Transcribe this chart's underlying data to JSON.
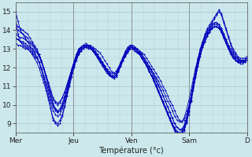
{
  "background_color": "#cce8ec",
  "grid_color": "#aaccd4",
  "line_color": "#0000bb",
  "xlabel": "Température (°c)",
  "xlim": [
    0,
    100
  ],
  "ylim": [
    8.5,
    15.5
  ],
  "yticks": [
    9,
    10,
    11,
    12,
    13,
    14,
    15
  ],
  "xtick_positions": [
    0,
    25,
    50,
    75,
    100
  ],
  "xtick_labels": [
    "Mer",
    "Jeu",
    "Ven",
    "Sam",
    "D"
  ],
  "series": [
    [
      14.7,
      13.8,
      13.4,
      13.2,
      13.1,
      13.0,
      12.9,
      12.7,
      12.5,
      12.3,
      12.0,
      11.6,
      11.2,
      10.8,
      10.3,
      9.8,
      9.3,
      9.1,
      9.0,
      9.2,
      9.5,
      10.0,
      10.5,
      11.0,
      11.5,
      12.0,
      12.4,
      12.7,
      12.9,
      13.1,
      13.2,
      13.2,
      13.2,
      13.1,
      13.0,
      12.9,
      12.8,
      12.6,
      12.4,
      12.2,
      12.0,
      11.8,
      11.7,
      11.8,
      12.0,
      12.3,
      12.6,
      12.9,
      13.1,
      13.2,
      13.2,
      13.1,
      13.0,
      12.9,
      12.8,
      12.7,
      12.5,
      12.3,
      12.1,
      11.9,
      11.7,
      11.5,
      11.3,
      11.0,
      10.8,
      10.5,
      10.2,
      10.0,
      9.7,
      9.4,
      9.2,
      9.1,
      9.2,
      9.5,
      9.9,
      10.5,
      11.2,
      11.9,
      12.5,
      13.0,
      13.4,
      13.7,
      14.0,
      14.2,
      14.4,
      14.6,
      14.8,
      15.0,
      14.8,
      14.4,
      14.0,
      13.6,
      13.2,
      12.9,
      12.7,
      12.5,
      12.4,
      12.4,
      12.4,
      12.5
    ],
    [
      15.0,
      14.5,
      14.0,
      13.8,
      13.6,
      13.4,
      13.2,
      13.0,
      12.8,
      12.6,
      12.3,
      11.9,
      11.4,
      10.9,
      10.4,
      9.8,
      9.2,
      9.0,
      8.9,
      9.0,
      9.4,
      9.9,
      10.5,
      11.1,
      11.7,
      12.2,
      12.6,
      12.9,
      13.1,
      13.2,
      13.3,
      13.2,
      13.1,
      13.0,
      12.9,
      12.7,
      12.5,
      12.3,
      12.1,
      11.9,
      11.7,
      11.5,
      11.4,
      11.5,
      11.8,
      12.2,
      12.5,
      12.8,
      13.0,
      13.2,
      13.2,
      13.1,
      13.0,
      12.9,
      12.7,
      12.5,
      12.3,
      12.1,
      11.9,
      11.6,
      11.4,
      11.1,
      10.8,
      10.5,
      10.2,
      9.9,
      9.6,
      9.3,
      9.0,
      8.8,
      8.7,
      8.7,
      8.8,
      9.2,
      9.7,
      10.4,
      11.1,
      11.8,
      12.4,
      13.0,
      13.4,
      13.8,
      14.1,
      14.3,
      14.5,
      14.7,
      14.9,
      15.1,
      14.9,
      14.5,
      14.1,
      13.7,
      13.3,
      13.0,
      12.8,
      12.6,
      12.5,
      12.5,
      12.5,
      12.6
    ],
    [
      13.5,
      13.5,
      13.4,
      13.4,
      13.3,
      13.2,
      13.1,
      13.0,
      12.9,
      12.8,
      12.6,
      12.3,
      12.0,
      11.6,
      11.2,
      10.8,
      10.4,
      10.2,
      10.1,
      10.2,
      10.4,
      10.7,
      11.1,
      11.5,
      11.9,
      12.3,
      12.6,
      12.8,
      13.0,
      13.1,
      13.1,
      13.1,
      13.0,
      12.9,
      12.8,
      12.7,
      12.5,
      12.3,
      12.1,
      11.9,
      11.8,
      11.7,
      11.7,
      11.8,
      12.0,
      12.3,
      12.5,
      12.8,
      13.0,
      13.1,
      13.1,
      13.0,
      12.9,
      12.8,
      12.7,
      12.5,
      12.3,
      12.1,
      11.9,
      11.7,
      11.5,
      11.3,
      11.0,
      10.8,
      10.5,
      10.2,
      10.0,
      9.7,
      9.4,
      9.2,
      9.1,
      9.1,
      9.3,
      9.7,
      10.2,
      10.8,
      11.4,
      12.0,
      12.5,
      13.0,
      13.3,
      13.6,
      13.8,
      14.0,
      14.1,
      14.2,
      14.2,
      14.1,
      13.9,
      13.6,
      13.3,
      13.0,
      12.8,
      12.6,
      12.5,
      12.4,
      12.4,
      12.4,
      12.4,
      12.5
    ],
    [
      13.8,
      13.7,
      13.6,
      13.6,
      13.5,
      13.4,
      13.3,
      13.2,
      13.0,
      12.9,
      12.7,
      12.4,
      12.0,
      11.6,
      11.2,
      10.7,
      10.3,
      10.1,
      10.0,
      10.1,
      10.4,
      10.7,
      11.1,
      11.5,
      11.9,
      12.3,
      12.7,
      12.9,
      13.1,
      13.2,
      13.2,
      13.2,
      13.1,
      13.0,
      12.8,
      12.7,
      12.5,
      12.3,
      12.1,
      11.9,
      11.7,
      11.6,
      11.6,
      11.7,
      11.9,
      12.2,
      12.5,
      12.7,
      12.9,
      13.1,
      13.1,
      13.0,
      12.9,
      12.8,
      12.6,
      12.4,
      12.2,
      12.0,
      11.8,
      11.5,
      11.3,
      11.0,
      10.8,
      10.5,
      10.2,
      9.9,
      9.6,
      9.3,
      9.0,
      8.8,
      8.7,
      8.7,
      8.9,
      9.3,
      9.8,
      10.4,
      11.0,
      11.6,
      12.2,
      12.7,
      13.1,
      13.4,
      13.7,
      13.9,
      14.1,
      14.2,
      14.2,
      14.1,
      13.9,
      13.6,
      13.3,
      13.0,
      12.8,
      12.6,
      12.4,
      12.3,
      12.3,
      12.3,
      12.4,
      12.5
    ],
    [
      14.1,
      14.0,
      13.9,
      13.8,
      13.7,
      13.6,
      13.4,
      13.3,
      13.1,
      12.9,
      12.6,
      12.3,
      11.9,
      11.5,
      11.0,
      10.5,
      10.1,
      9.8,
      9.7,
      9.8,
      10.1,
      10.5,
      10.9,
      11.4,
      11.9,
      12.3,
      12.7,
      13.0,
      13.1,
      13.2,
      13.2,
      13.2,
      13.1,
      13.0,
      12.8,
      12.6,
      12.4,
      12.2,
      12.0,
      11.8,
      11.6,
      11.5,
      11.5,
      11.6,
      11.9,
      12.2,
      12.5,
      12.7,
      12.9,
      13.1,
      13.1,
      13.0,
      12.9,
      12.7,
      12.5,
      12.3,
      12.1,
      11.9,
      11.6,
      11.4,
      11.1,
      10.8,
      10.5,
      10.2,
      9.9,
      9.6,
      9.3,
      9.0,
      8.8,
      8.6,
      8.5,
      8.6,
      8.8,
      9.2,
      9.7,
      10.4,
      11.0,
      11.7,
      12.3,
      12.8,
      13.2,
      13.6,
      13.9,
      14.1,
      14.3,
      14.4,
      14.4,
      14.3,
      14.1,
      13.8,
      13.5,
      13.2,
      13.0,
      12.8,
      12.6,
      12.5,
      12.4,
      12.4,
      12.4,
      12.5
    ],
    [
      13.3,
      13.2,
      13.2,
      13.1,
      13.0,
      13.0,
      12.9,
      12.8,
      12.6,
      12.5,
      12.3,
      12.0,
      11.6,
      11.2,
      10.8,
      10.3,
      9.9,
      9.7,
      9.6,
      9.7,
      9.9,
      10.3,
      10.7,
      11.2,
      11.7,
      12.1,
      12.5,
      12.7,
      12.9,
      13.0,
      13.1,
      13.0,
      13.0,
      12.9,
      12.7,
      12.6,
      12.4,
      12.2,
      12.0,
      11.8,
      11.6,
      11.5,
      11.5,
      11.6,
      11.8,
      12.1,
      12.4,
      12.7,
      12.9,
      13.0,
      13.0,
      12.9,
      12.8,
      12.7,
      12.5,
      12.3,
      12.1,
      11.9,
      11.6,
      11.4,
      11.1,
      10.8,
      10.5,
      10.2,
      9.9,
      9.6,
      9.3,
      9.0,
      8.7,
      8.5,
      8.4,
      8.5,
      8.7,
      9.1,
      9.6,
      10.2,
      10.9,
      11.5,
      12.1,
      12.7,
      13.1,
      13.4,
      13.7,
      13.9,
      14.1,
      14.2,
      14.2,
      14.1,
      13.9,
      13.6,
      13.3,
      13.0,
      12.7,
      12.5,
      12.4,
      12.3,
      12.3,
      12.3,
      12.3,
      12.4
    ],
    [
      14.3,
      14.2,
      14.1,
      14.0,
      13.9,
      13.8,
      13.6,
      13.4,
      13.2,
      13.0,
      12.7,
      12.4,
      12.0,
      11.5,
      11.0,
      10.5,
      10.0,
      9.8,
      9.6,
      9.7,
      10.0,
      10.4,
      10.9,
      11.4,
      11.9,
      12.3,
      12.7,
      13.0,
      13.1,
      13.2,
      13.2,
      13.2,
      13.1,
      13.0,
      12.8,
      12.6,
      12.4,
      12.2,
      12.0,
      11.8,
      11.6,
      11.5,
      11.5,
      11.6,
      11.8,
      12.1,
      12.4,
      12.7,
      12.9,
      13.0,
      13.0,
      13.0,
      12.9,
      12.7,
      12.5,
      12.3,
      12.1,
      11.8,
      11.6,
      11.3,
      11.0,
      10.7,
      10.4,
      10.1,
      9.8,
      9.5,
      9.2,
      8.9,
      8.7,
      8.5,
      8.4,
      8.5,
      8.7,
      9.1,
      9.7,
      10.3,
      11.0,
      11.7,
      12.3,
      12.8,
      13.2,
      13.6,
      13.9,
      14.1,
      14.3,
      14.4,
      14.4,
      14.3,
      14.1,
      13.8,
      13.5,
      13.2,
      12.9,
      12.7,
      12.5,
      12.4,
      12.3,
      12.3,
      12.3,
      12.4
    ],
    [
      13.6,
      13.5,
      13.4,
      13.3,
      13.2,
      13.1,
      13.0,
      12.9,
      12.7,
      12.5,
      12.3,
      11.9,
      11.5,
      11.1,
      10.6,
      10.1,
      9.7,
      9.5,
      9.4,
      9.5,
      9.8,
      10.2,
      10.7,
      11.2,
      11.7,
      12.1,
      12.5,
      12.8,
      13.0,
      13.1,
      13.1,
      13.1,
      13.0,
      12.9,
      12.7,
      12.5,
      12.3,
      12.1,
      11.9,
      11.7,
      11.6,
      11.5,
      11.5,
      11.6,
      11.8,
      12.1,
      12.4,
      12.6,
      12.8,
      13.0,
      13.0,
      12.9,
      12.8,
      12.7,
      12.5,
      12.3,
      12.1,
      11.8,
      11.6,
      11.3,
      11.0,
      10.7,
      10.4,
      10.1,
      9.8,
      9.5,
      9.2,
      8.9,
      8.6,
      8.4,
      8.3,
      8.4,
      8.6,
      9.0,
      9.5,
      10.2,
      10.8,
      11.5,
      12.1,
      12.6,
      13.1,
      13.4,
      13.7,
      14.0,
      14.2,
      14.3,
      14.3,
      14.2,
      14.0,
      13.7,
      13.4,
      13.1,
      12.8,
      12.6,
      12.4,
      12.3,
      12.2,
      12.2,
      12.3,
      12.4
    ]
  ]
}
